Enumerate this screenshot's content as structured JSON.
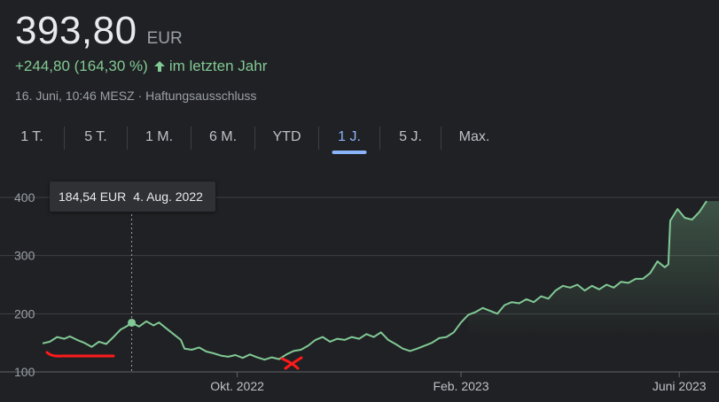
{
  "quote": {
    "price": "393,80",
    "currency": "EUR",
    "change": "+244,80 (164,30 %)",
    "period": "im letzten Jahr",
    "timestamp": "16. Juni, 10:46 MESZ",
    "separator": "·",
    "disclaimer": "Haftungsausschluss"
  },
  "tabs": [
    {
      "label": "1 T."
    },
    {
      "label": "5 T."
    },
    {
      "label": "1 M."
    },
    {
      "label": "6 M."
    },
    {
      "label": "YTD"
    },
    {
      "label": "1 J.",
      "active": true
    },
    {
      "label": "5 J."
    },
    {
      "label": "Max."
    }
  ],
  "tooltip": {
    "value": "184,54 EUR",
    "date": "4. Aug. 2022"
  },
  "colors": {
    "line": "#81c995",
    "accent": "#8ab4f8",
    "annotation": "#ff1a1a"
  },
  "chart_data": {
    "type": "area",
    "x_ticks": [
      "Okt. 2022",
      "Feb. 2023",
      "Juni 2023"
    ],
    "y_ticks": [
      100,
      200,
      300,
      400
    ],
    "ylim": [
      100,
      400
    ],
    "x_start": "2022-06-16",
    "x_end": "2023-06-16",
    "hover": {
      "date": "2022-08-04",
      "value": 184.54
    },
    "points": [
      [
        "2022-06-16",
        149
      ],
      [
        "2022-06-20",
        152
      ],
      [
        "2022-06-24",
        160
      ],
      [
        "2022-06-28",
        157
      ],
      [
        "2022-07-01",
        161
      ],
      [
        "2022-07-05",
        155
      ],
      [
        "2022-07-09",
        150
      ],
      [
        "2022-07-13",
        143
      ],
      [
        "2022-07-17",
        152
      ],
      [
        "2022-07-21",
        148
      ],
      [
        "2022-07-25",
        160
      ],
      [
        "2022-07-29",
        173
      ],
      [
        "2022-08-01",
        178
      ],
      [
        "2022-08-04",
        184.54
      ],
      [
        "2022-08-08",
        178
      ],
      [
        "2022-08-12",
        187
      ],
      [
        "2022-08-16",
        180
      ],
      [
        "2022-08-19",
        185
      ],
      [
        "2022-08-23",
        175
      ],
      [
        "2022-08-27",
        165
      ],
      [
        "2022-08-31",
        155
      ],
      [
        "2022-09-02",
        140
      ],
      [
        "2022-09-06",
        138
      ],
      [
        "2022-09-10",
        142
      ],
      [
        "2022-09-14",
        135
      ],
      [
        "2022-09-18",
        132
      ],
      [
        "2022-09-22",
        128
      ],
      [
        "2022-09-26",
        126
      ],
      [
        "2022-09-30",
        129
      ],
      [
        "2022-10-04",
        124
      ],
      [
        "2022-10-08",
        130
      ],
      [
        "2022-10-12",
        125
      ],
      [
        "2022-10-16",
        121
      ],
      [
        "2022-10-20",
        125
      ],
      [
        "2022-10-24",
        122
      ],
      [
        "2022-10-28",
        130
      ],
      [
        "2022-11-01",
        136
      ],
      [
        "2022-11-05",
        138
      ],
      [
        "2022-11-09",
        145
      ],
      [
        "2022-11-13",
        155
      ],
      [
        "2022-11-17",
        160
      ],
      [
        "2022-11-21",
        152
      ],
      [
        "2022-11-25",
        157
      ],
      [
        "2022-11-29",
        155
      ],
      [
        "2022-12-03",
        160
      ],
      [
        "2022-12-07",
        157
      ],
      [
        "2022-12-11",
        165
      ],
      [
        "2022-12-15",
        160
      ],
      [
        "2022-12-19",
        168
      ],
      [
        "2022-12-23",
        155
      ],
      [
        "2022-12-27",
        148
      ],
      [
        "2022-12-31",
        140
      ],
      [
        "2023-01-04",
        136
      ],
      [
        "2023-01-08",
        140
      ],
      [
        "2023-01-12",
        145
      ],
      [
        "2023-01-16",
        150
      ],
      [
        "2023-01-20",
        158
      ],
      [
        "2023-01-24",
        160
      ],
      [
        "2023-01-28",
        168
      ],
      [
        "2023-02-01",
        185
      ],
      [
        "2023-02-05",
        198
      ],
      [
        "2023-02-09",
        203
      ],
      [
        "2023-02-13",
        210
      ],
      [
        "2023-02-17",
        205
      ],
      [
        "2023-02-21",
        200
      ],
      [
        "2023-02-25",
        215
      ],
      [
        "2023-03-01",
        220
      ],
      [
        "2023-03-05",
        218
      ],
      [
        "2023-03-09",
        225
      ],
      [
        "2023-03-13",
        220
      ],
      [
        "2023-03-17",
        230
      ],
      [
        "2023-03-21",
        226
      ],
      [
        "2023-03-25",
        240
      ],
      [
        "2023-03-29",
        248
      ],
      [
        "2023-04-02",
        245
      ],
      [
        "2023-04-06",
        250
      ],
      [
        "2023-04-10",
        240
      ],
      [
        "2023-04-14",
        248
      ],
      [
        "2023-04-18",
        242
      ],
      [
        "2023-04-22",
        250
      ],
      [
        "2023-04-26",
        245
      ],
      [
        "2023-04-30",
        255
      ],
      [
        "2023-05-04",
        253
      ],
      [
        "2023-05-08",
        260
      ],
      [
        "2023-05-12",
        260
      ],
      [
        "2023-05-16",
        270
      ],
      [
        "2023-05-20",
        290
      ],
      [
        "2023-05-24",
        280
      ],
      [
        "2023-05-26",
        285
      ],
      [
        "2023-05-27",
        360
      ],
      [
        "2023-05-31",
        380
      ],
      [
        "2023-06-04",
        365
      ],
      [
        "2023-06-08",
        362
      ],
      [
        "2023-06-12",
        375
      ],
      [
        "2023-06-16",
        393.8
      ]
    ]
  }
}
